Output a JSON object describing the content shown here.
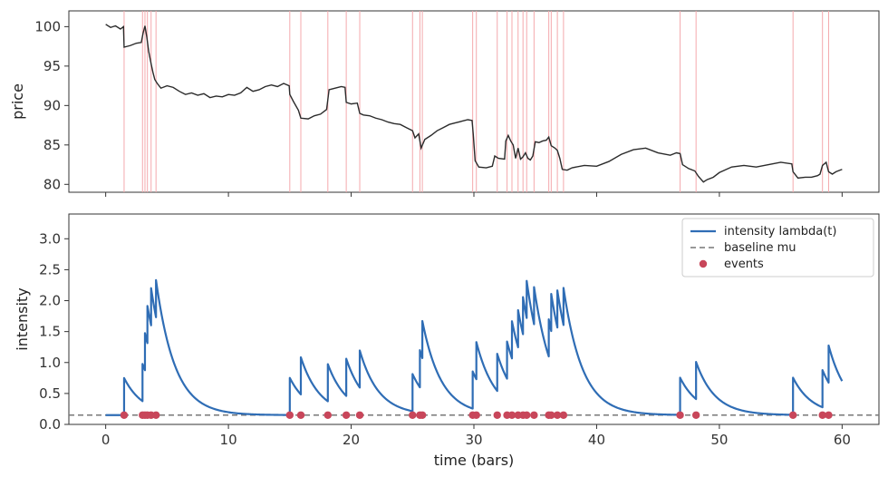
{
  "chart_data": [
    {
      "type": "line",
      "ylabel": "price",
      "xlim": [
        -3,
        63
      ],
      "ylim": [
        79,
        102
      ],
      "yticks": [
        80,
        85,
        90,
        95,
        100
      ],
      "line_color": "#2b2b2b",
      "event_line_color": "#f4a9ad",
      "series": [
        {
          "values": [
            [
              0.0,
              100.3
            ],
            [
              0.4,
              99.9
            ],
            [
              0.8,
              100.1
            ],
            [
              1.2,
              99.7
            ],
            [
              1.45,
              100.0
            ],
            [
              1.5,
              97.4
            ],
            [
              2.0,
              97.6
            ],
            [
              2.5,
              97.9
            ],
            [
              2.9,
              98.0
            ],
            [
              3.05,
              99.2
            ],
            [
              3.2,
              100.1
            ],
            [
              3.35,
              98.7
            ],
            [
              3.5,
              96.9
            ],
            [
              3.7,
              95.3
            ],
            [
              3.85,
              94.2
            ],
            [
              4.0,
              93.3
            ],
            [
              4.2,
              92.8
            ],
            [
              4.5,
              92.2
            ],
            [
              5.0,
              92.5
            ],
            [
              5.5,
              92.3
            ],
            [
              6.0,
              91.8
            ],
            [
              6.5,
              91.4
            ],
            [
              7.0,
              91.6
            ],
            [
              7.5,
              91.3
            ],
            [
              8.0,
              91.5
            ],
            [
              8.5,
              91.0
            ],
            [
              9.0,
              91.2
            ],
            [
              9.5,
              91.1
            ],
            [
              10.0,
              91.4
            ],
            [
              10.5,
              91.3
            ],
            [
              11.0,
              91.6
            ],
            [
              11.5,
              92.3
            ],
            [
              12.0,
              91.8
            ],
            [
              12.5,
              92.0
            ],
            [
              13.0,
              92.4
            ],
            [
              13.5,
              92.6
            ],
            [
              14.0,
              92.4
            ],
            [
              14.5,
              92.8
            ],
            [
              14.95,
              92.5
            ],
            [
              15.0,
              91.4
            ],
            [
              15.3,
              90.5
            ],
            [
              15.7,
              89.4
            ],
            [
              15.9,
              88.4
            ],
            [
              16.5,
              88.3
            ],
            [
              17.0,
              88.7
            ],
            [
              17.5,
              88.9
            ],
            [
              18.0,
              89.5
            ],
            [
              18.2,
              92.0
            ],
            [
              18.7,
              92.2
            ],
            [
              19.2,
              92.4
            ],
            [
              19.5,
              92.3
            ],
            [
              19.6,
              90.4
            ],
            [
              20.0,
              90.2
            ],
            [
              20.5,
              90.3
            ],
            [
              20.7,
              89.0
            ],
            [
              21.0,
              88.8
            ],
            [
              21.5,
              88.7
            ],
            [
              22.0,
              88.4
            ],
            [
              22.5,
              88.2
            ],
            [
              23.0,
              87.9
            ],
            [
              23.5,
              87.7
            ],
            [
              24.0,
              87.6
            ],
            [
              24.5,
              87.2
            ],
            [
              25.0,
              86.8
            ],
            [
              25.2,
              85.9
            ],
            [
              25.5,
              86.4
            ],
            [
              25.7,
              84.6
            ],
            [
              26.0,
              85.7
            ],
            [
              26.5,
              86.2
            ],
            [
              27.0,
              86.8
            ],
            [
              27.5,
              87.2
            ],
            [
              28.0,
              87.6
            ],
            [
              28.5,
              87.8
            ],
            [
              29.0,
              88.0
            ],
            [
              29.5,
              88.2
            ],
            [
              29.85,
              88.1
            ],
            [
              29.95,
              86.3
            ],
            [
              30.1,
              83.0
            ],
            [
              30.4,
              82.2
            ],
            [
              31.0,
              82.1
            ],
            [
              31.5,
              82.3
            ],
            [
              31.7,
              83.6
            ],
            [
              32.0,
              83.3
            ],
            [
              32.5,
              83.2
            ],
            [
              32.6,
              85.5
            ],
            [
              32.8,
              86.2
            ],
            [
              33.0,
              85.5
            ],
            [
              33.2,
              85.0
            ],
            [
              33.4,
              83.3
            ],
            [
              33.6,
              84.6
            ],
            [
              33.8,
              83.2
            ],
            [
              34.0,
              83.5
            ],
            [
              34.2,
              84.0
            ],
            [
              34.4,
              83.3
            ],
            [
              34.6,
              83.1
            ],
            [
              34.8,
              83.6
            ],
            [
              35.0,
              85.4
            ],
            [
              35.3,
              85.3
            ],
            [
              35.6,
              85.5
            ],
            [
              35.9,
              85.6
            ],
            [
              36.1,
              86.0
            ],
            [
              36.3,
              84.9
            ],
            [
              36.6,
              84.6
            ],
            [
              36.8,
              84.3
            ],
            [
              37.0,
              83.3
            ],
            [
              37.2,
              81.9
            ],
            [
              37.6,
              81.8
            ],
            [
              38.0,
              82.1
            ],
            [
              39.0,
              82.4
            ],
            [
              40.0,
              82.3
            ],
            [
              41.0,
              82.9
            ],
            [
              42.0,
              83.8
            ],
            [
              43.0,
              84.4
            ],
            [
              44.0,
              84.6
            ],
            [
              45.0,
              84.0
            ],
            [
              46.0,
              83.7
            ],
            [
              46.5,
              84.0
            ],
            [
              46.8,
              83.9
            ],
            [
              47.0,
              82.5
            ],
            [
              47.5,
              82.0
            ],
            [
              48.0,
              81.7
            ],
            [
              48.3,
              81.0
            ],
            [
              48.7,
              80.3
            ],
            [
              49.0,
              80.6
            ],
            [
              49.5,
              80.9
            ],
            [
              50.0,
              81.5
            ],
            [
              51.0,
              82.2
            ],
            [
              52.0,
              82.4
            ],
            [
              53.0,
              82.2
            ],
            [
              54.0,
              82.5
            ],
            [
              55.0,
              82.8
            ],
            [
              55.9,
              82.6
            ],
            [
              56.0,
              81.6
            ],
            [
              56.4,
              80.8
            ],
            [
              57.0,
              80.9
            ],
            [
              57.5,
              80.9
            ],
            [
              58.0,
              81.1
            ],
            [
              58.2,
              81.3
            ],
            [
              58.4,
              82.4
            ],
            [
              58.7,
              82.8
            ],
            [
              58.9,
              81.6
            ],
            [
              59.2,
              81.3
            ],
            [
              59.5,
              81.6
            ],
            [
              60.0,
              81.9
            ]
          ]
        }
      ],
      "event_times": [
        1.5,
        3.0,
        3.2,
        3.4,
        3.7,
        4.1,
        15.0,
        15.9,
        18.1,
        19.6,
        20.7,
        25.0,
        25.6,
        25.8,
        29.9,
        30.2,
        31.9,
        32.7,
        33.1,
        33.6,
        34.0,
        34.3,
        34.9,
        36.1,
        36.3,
        36.8,
        37.3,
        46.8,
        48.1,
        56.0,
        58.4,
        58.9
      ]
    },
    {
      "type": "line",
      "xlabel": "time (bars)",
      "ylabel": "intensity",
      "xlim": [
        -3,
        63
      ],
      "ylim": [
        0.0,
        3.4
      ],
      "xticks": [
        0,
        10,
        20,
        30,
        40,
        50,
        60
      ],
      "yticks": [
        0.0,
        0.5,
        1.0,
        1.5,
        2.0,
        2.5,
        3.0
      ],
      "legend_position": "top-right",
      "series": [
        {
          "name": "intensity lambda(t)",
          "style": "line",
          "color": "#2f6db5",
          "mu": 0.15,
          "alpha": 0.6,
          "beta": 0.65,
          "t_end": 60
        },
        {
          "name": "baseline mu",
          "style": "dashed",
          "color": "#777777",
          "value": 0.15
        },
        {
          "name": "events",
          "style": "marker",
          "color": "#c8465a",
          "y": 0.15
        }
      ]
    }
  ],
  "legend": {
    "intensity": "intensity lambda(t)",
    "baseline": "baseline mu",
    "events": "events"
  }
}
